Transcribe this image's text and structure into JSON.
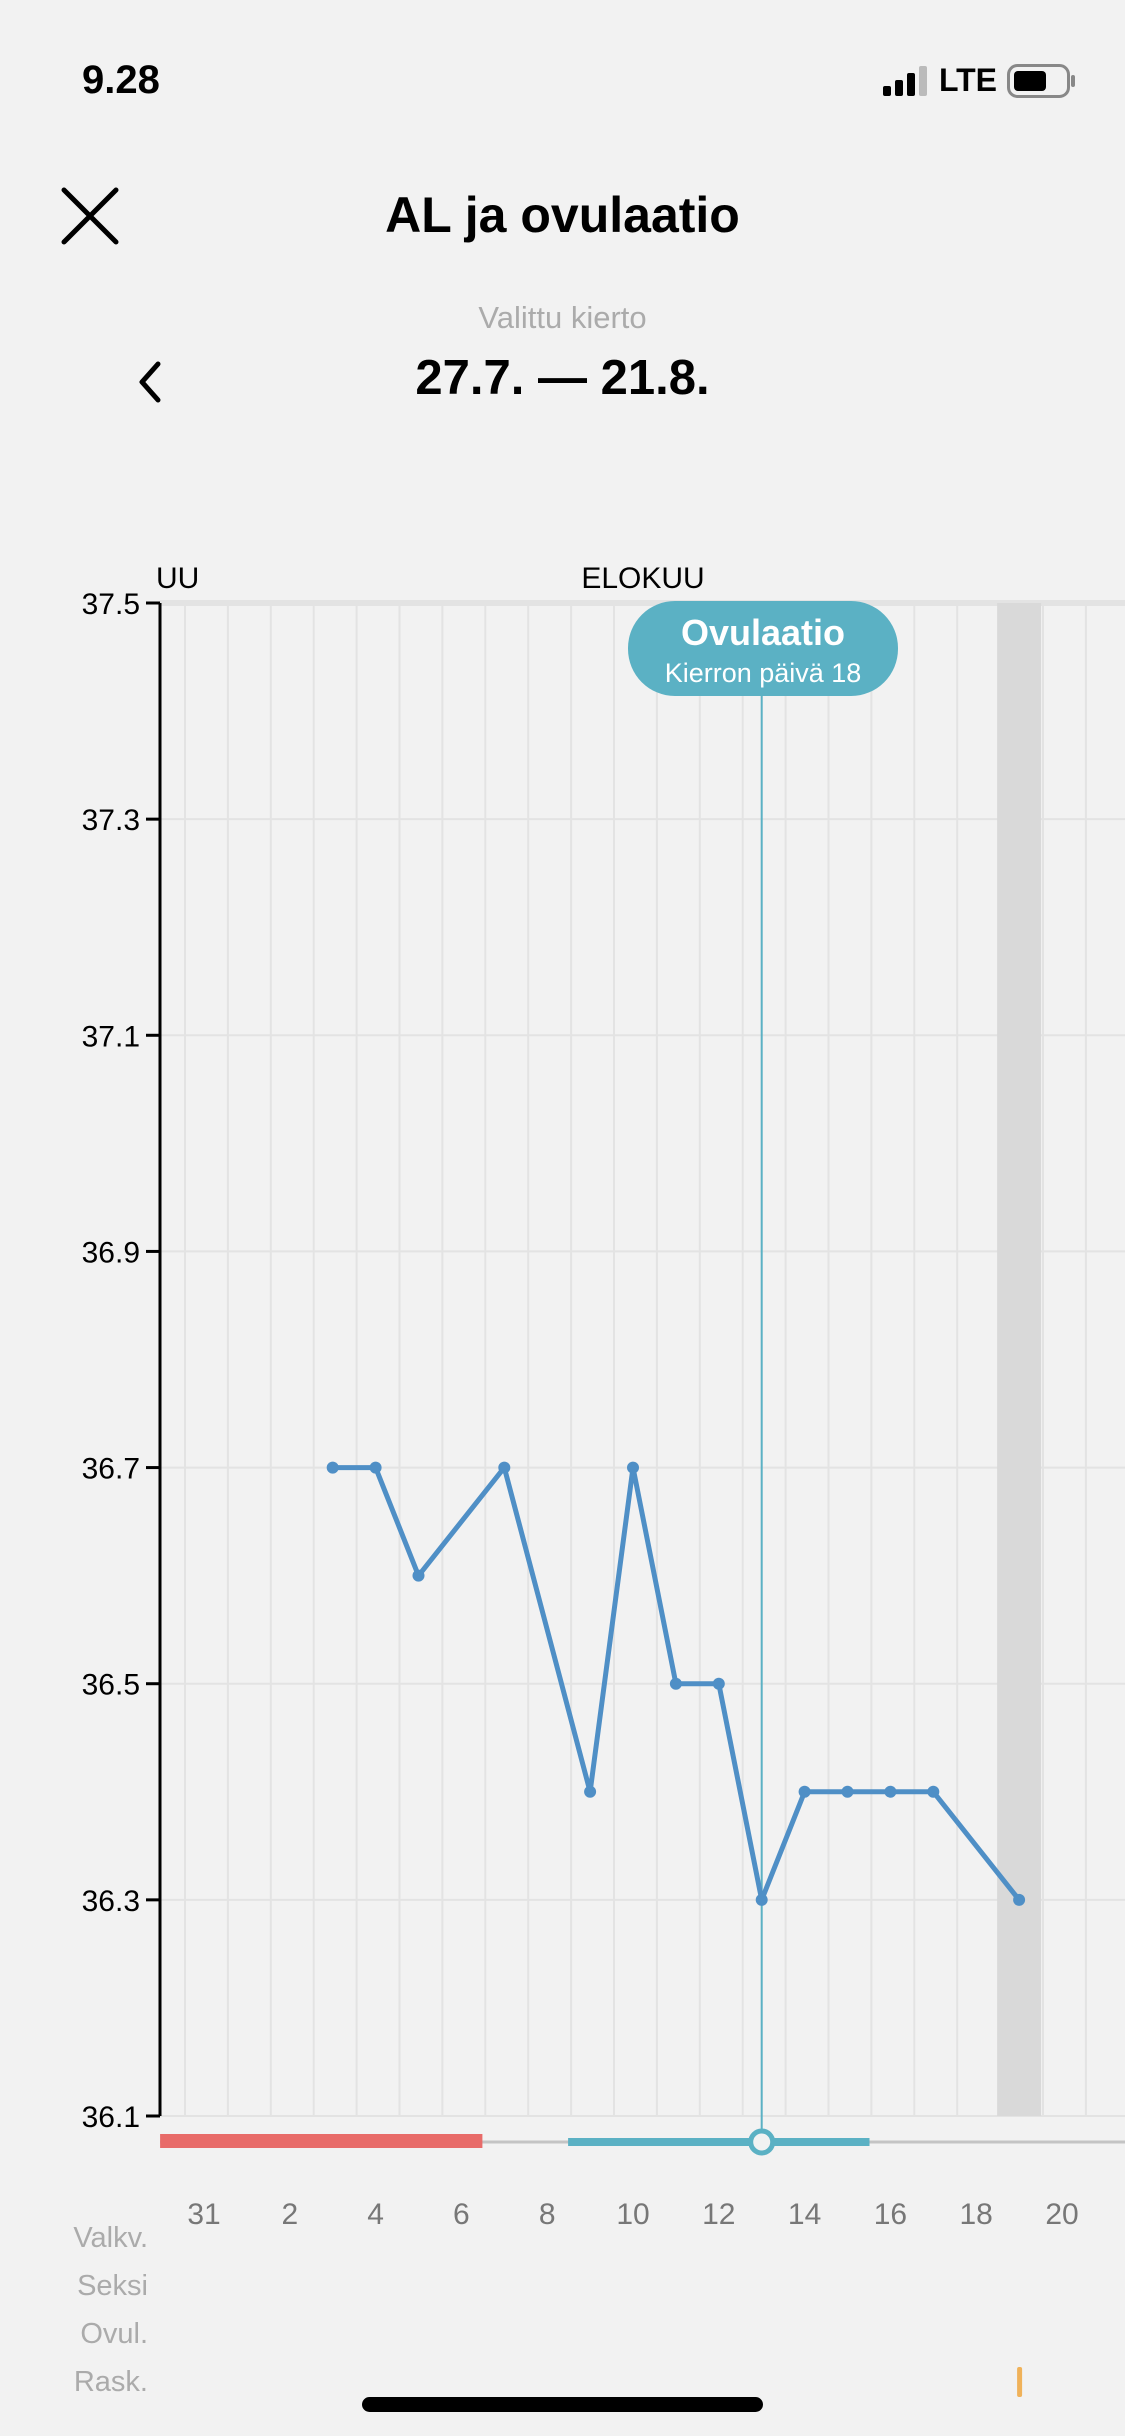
{
  "status_bar": {
    "time": "9.28",
    "network": "LTE",
    "signal_icon": "signal-bars-icon",
    "battery_icon": "battery-icon"
  },
  "header": {
    "title": "AL ja ovulaatio",
    "close_icon": "close-icon"
  },
  "cycle": {
    "label": "Valittu kierto",
    "range": "27.7. — 21.8.",
    "prev_icon": "chevron-left-icon"
  },
  "colors": {
    "line": "#4f8fc6",
    "ovulation": "#5bb1c4",
    "period": "#e86b69",
    "pregnancy_marker": "#f0b25a"
  },
  "ovulation_badge": {
    "title": "Ovulaatio",
    "subtitle": "Kierron päivä 18"
  },
  "chart_data": {
    "type": "line",
    "month_labels": [
      "UU",
      "ELOKUU"
    ],
    "ylim": [
      36.1,
      37.5
    ],
    "y_ticks": [
      "37.5",
      "37.3",
      "37.1",
      "36.9",
      "36.7",
      "36.5",
      "36.3",
      "36.1"
    ],
    "x_ticks": [
      "31",
      "2",
      "4",
      "6",
      "8",
      "10",
      "12",
      "14",
      "16",
      "18",
      "20"
    ],
    "grid": true,
    "x": [
      "3.8.",
      "4.8.",
      "5.8.",
      "7.8.",
      "9.8.",
      "10.8.",
      "11.8.",
      "12.8.",
      "13.8.",
      "14.8.",
      "15.8.",
      "16.8.",
      "17.8.",
      "19.8."
    ],
    "values": [
      36.7,
      36.7,
      36.6,
      36.7,
      36.4,
      36.7,
      36.5,
      36.5,
      36.3,
      36.4,
      36.4,
      36.4,
      36.4,
      36.3
    ],
    "ovulation_day": "13.8.",
    "highlighted_day": "19.8.",
    "period_range": [
      "30.7.",
      "6.8."
    ],
    "fertile_range": [
      "9.8.",
      "15.8."
    ]
  },
  "rows": {
    "labels": [
      "Valkv.",
      "Seksi",
      "Ovul.",
      "Rask."
    ],
    "pregnancy_test_day": "19.8."
  }
}
